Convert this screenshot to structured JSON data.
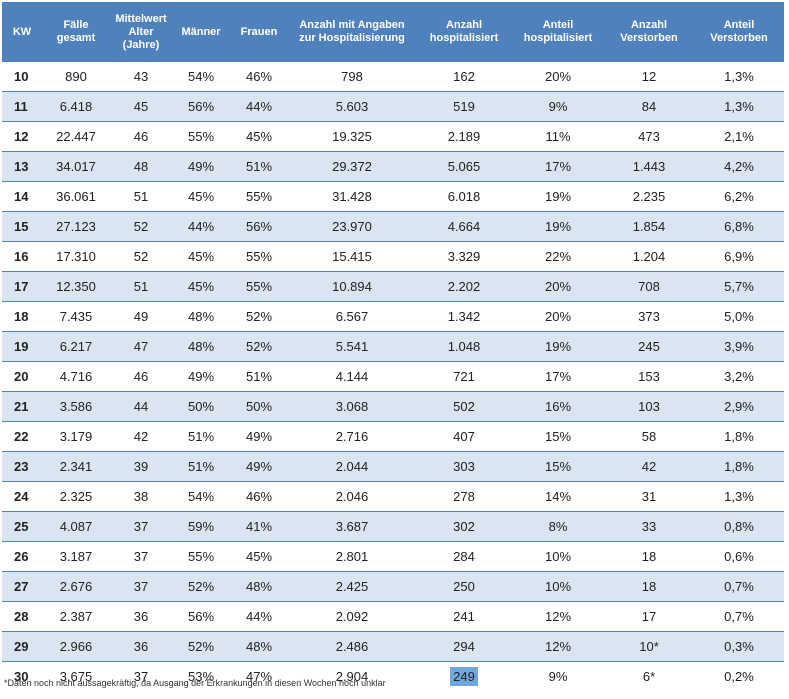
{
  "header": {
    "kw": "KW",
    "faelle": "Fälle gesamt",
    "alter": "Mittelwert Alter (Jahre)",
    "maenner": "Männer",
    "frauen": "Frauen",
    "angaben": "Anzahl mit Angaben zur Hospitalisierung",
    "hosp_anzahl": "Anzahl hospitalisiert",
    "hosp_anteil": "Anteil hospitalisiert",
    "verst_anzahl": "Anzahl Verstorben",
    "verst_anteil": "Anteil Verstorben"
  },
  "rows": [
    {
      "kw": "10",
      "faelle": "890",
      "alter": "43",
      "maenner": "54%",
      "frauen": "46%",
      "angaben": "798",
      "hosp_anzahl": "162",
      "hosp_anteil": "20%",
      "verst_anzahl": "12",
      "verst_anteil": "1,3%"
    },
    {
      "kw": "11",
      "faelle": "6.418",
      "alter": "45",
      "maenner": "56%",
      "frauen": "44%",
      "angaben": "5.603",
      "hosp_anzahl": "519",
      "hosp_anteil": "9%",
      "verst_anzahl": "84",
      "verst_anteil": "1,3%"
    },
    {
      "kw": "12",
      "faelle": "22.447",
      "alter": "46",
      "maenner": "55%",
      "frauen": "45%",
      "angaben": "19.325",
      "hosp_anzahl": "2.189",
      "hosp_anteil": "11%",
      "verst_anzahl": "473",
      "verst_anteil": "2,1%"
    },
    {
      "kw": "13",
      "faelle": "34.017",
      "alter": "48",
      "maenner": "49%",
      "frauen": "51%",
      "angaben": "29.372",
      "hosp_anzahl": "5.065",
      "hosp_anteil": "17%",
      "verst_anzahl": "1.443",
      "verst_anteil": "4,2%"
    },
    {
      "kw": "14",
      "faelle": "36.061",
      "alter": "51",
      "maenner": "45%",
      "frauen": "55%",
      "angaben": "31.428",
      "hosp_anzahl": "6.018",
      "hosp_anteil": "19%",
      "verst_anzahl": "2.235",
      "verst_anteil": "6,2%"
    },
    {
      "kw": "15",
      "faelle": "27.123",
      "alter": "52",
      "maenner": "44%",
      "frauen": "56%",
      "angaben": "23.970",
      "hosp_anzahl": "4.664",
      "hosp_anteil": "19%",
      "verst_anzahl": "1.854",
      "verst_anteil": "6,8%"
    },
    {
      "kw": "16",
      "faelle": "17.310",
      "alter": "52",
      "maenner": "45%",
      "frauen": "55%",
      "angaben": "15.415",
      "hosp_anzahl": "3.329",
      "hosp_anteil": "22%",
      "verst_anzahl": "1.204",
      "verst_anteil": "6,9%"
    },
    {
      "kw": "17",
      "faelle": "12.350",
      "alter": "51",
      "maenner": "45%",
      "frauen": "55%",
      "angaben": "10.894",
      "hosp_anzahl": "2.202",
      "hosp_anteil": "20%",
      "verst_anzahl": "708",
      "verst_anteil": "5,7%"
    },
    {
      "kw": "18",
      "faelle": "7.435",
      "alter": "49",
      "maenner": "48%",
      "frauen": "52%",
      "angaben": "6.567",
      "hosp_anzahl": "1.342",
      "hosp_anteil": "20%",
      "verst_anzahl": "373",
      "verst_anteil": "5,0%"
    },
    {
      "kw": "19",
      "faelle": "6.217",
      "alter": "47",
      "maenner": "48%",
      "frauen": "52%",
      "angaben": "5.541",
      "hosp_anzahl": "1.048",
      "hosp_anteil": "19%",
      "verst_anzahl": "245",
      "verst_anteil": "3,9%"
    },
    {
      "kw": "20",
      "faelle": "4.716",
      "alter": "46",
      "maenner": "49%",
      "frauen": "51%",
      "angaben": "4.144",
      "hosp_anzahl": "721",
      "hosp_anteil": "17%",
      "verst_anzahl": "153",
      "verst_anteil": "3,2%"
    },
    {
      "kw": "21",
      "faelle": "3.586",
      "alter": "44",
      "maenner": "50%",
      "frauen": "50%",
      "angaben": "3.068",
      "hosp_anzahl": "502",
      "hosp_anteil": "16%",
      "verst_anzahl": "103",
      "verst_anteil": "2,9%"
    },
    {
      "kw": "22",
      "faelle": "3.179",
      "alter": "42",
      "maenner": "51%",
      "frauen": "49%",
      "angaben": "2.716",
      "hosp_anzahl": "407",
      "hosp_anteil": "15%",
      "verst_anzahl": "58",
      "verst_anteil": "1,8%"
    },
    {
      "kw": "23",
      "faelle": "2.341",
      "alter": "39",
      "maenner": "51%",
      "frauen": "49%",
      "angaben": "2.044",
      "hosp_anzahl": "303",
      "hosp_anteil": "15%",
      "verst_anzahl": "42",
      "verst_anteil": "1,8%"
    },
    {
      "kw": "24",
      "faelle": "2.325",
      "alter": "38",
      "maenner": "54%",
      "frauen": "46%",
      "angaben": "2.046",
      "hosp_anzahl": "278",
      "hosp_anteil": "14%",
      "verst_anzahl": "31",
      "verst_anteil": "1,3%"
    },
    {
      "kw": "25",
      "faelle": "4.087",
      "alter": "37",
      "maenner": "59%",
      "frauen": "41%",
      "angaben": "3.687",
      "hosp_anzahl": "302",
      "hosp_anteil": "8%",
      "verst_anzahl": "33",
      "verst_anteil": "0,8%"
    },
    {
      "kw": "26",
      "faelle": "3.187",
      "alter": "37",
      "maenner": "55%",
      "frauen": "45%",
      "angaben": "2.801",
      "hosp_anzahl": "284",
      "hosp_anteil": "10%",
      "verst_anzahl": "18",
      "verst_anteil": "0,6%"
    },
    {
      "kw": "27",
      "faelle": "2.676",
      "alter": "37",
      "maenner": "52%",
      "frauen": "48%",
      "angaben": "2.425",
      "hosp_anzahl": "250",
      "hosp_anteil": "10%",
      "verst_anzahl": "18",
      "verst_anteil": "0,7%"
    },
    {
      "kw": "28",
      "faelle": "2.387",
      "alter": "36",
      "maenner": "56%",
      "frauen": "44%",
      "angaben": "2.092",
      "hosp_anzahl": "241",
      "hosp_anteil": "12%",
      "verst_anzahl": "17",
      "verst_anteil": "0,7%"
    },
    {
      "kw": "29",
      "faelle": "2.966",
      "alter": "36",
      "maenner": "52%",
      "frauen": "48%",
      "angaben": "2.486",
      "hosp_anzahl": "294",
      "hosp_anteil": "12%",
      "verst_anzahl": "10*",
      "verst_anteil": "0,3%"
    },
    {
      "kw": "30",
      "faelle": "3.675",
      "alter": "37",
      "maenner": "53%",
      "frauen": "47%",
      "angaben": "2.904",
      "hosp_anzahl": "249",
      "hosp_anteil": "9%",
      "verst_anzahl": "6*",
      "verst_anteil": "0,2%"
    }
  ],
  "footnote": "*Daten noch nicht aussagekräftig, da Ausgang der Erkrankungen in diesen Wochen noch unklar",
  "colors": {
    "header_bg": "#4f81bd",
    "band_bg": "#dbe5f1",
    "selection_bg": "#6fa8dc"
  }
}
